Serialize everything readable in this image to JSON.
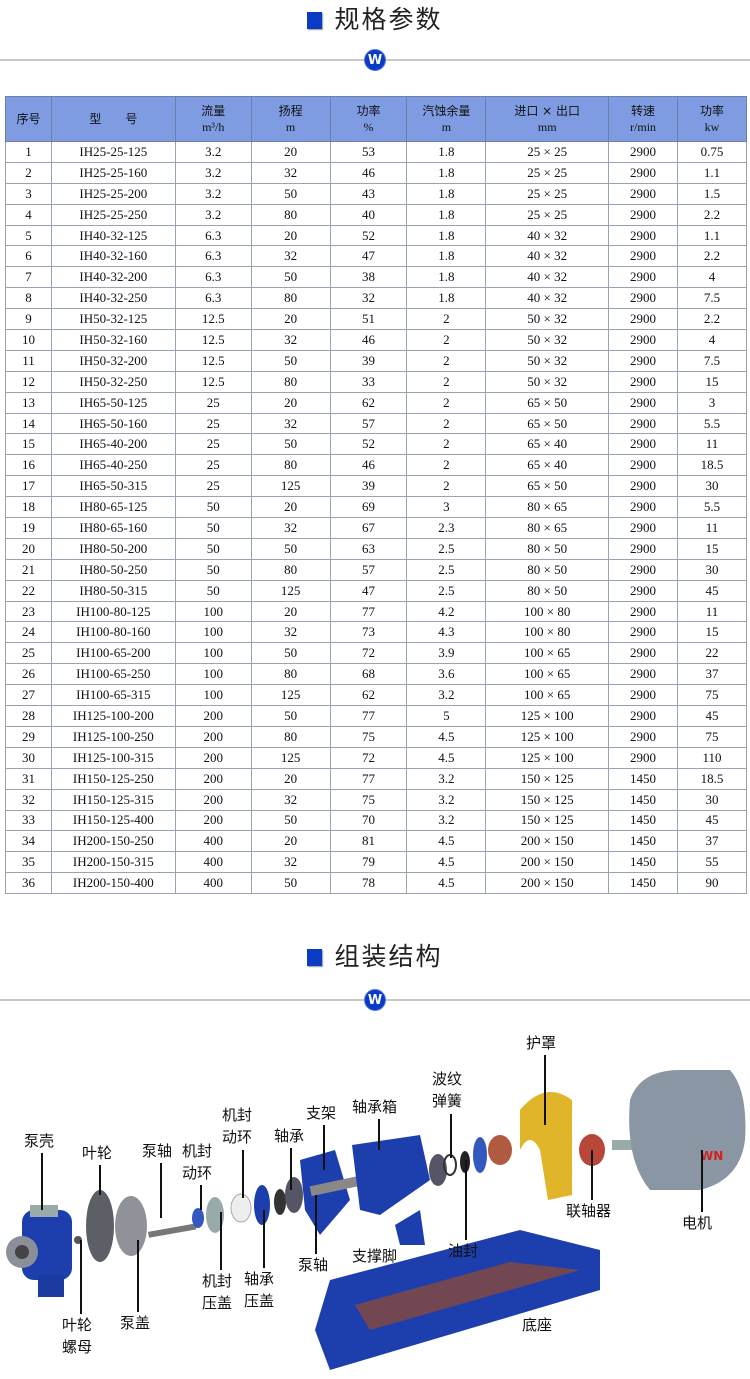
{
  "section1": {
    "title": "规格参数",
    "badge": "W"
  },
  "section2": {
    "title": "组装结构",
    "badge": "W"
  },
  "table": {
    "headers": [
      {
        "top": "序号",
        "bottom": ""
      },
      {
        "top": "型　　号",
        "bottom": ""
      },
      {
        "top": "流量",
        "bottom": "m³/h"
      },
      {
        "top": "扬程",
        "bottom": "m"
      },
      {
        "top": "功率",
        "bottom": "%"
      },
      {
        "top": "汽蚀余量",
        "bottom": "m"
      },
      {
        "top": "进口 × 出口",
        "bottom": "mm"
      },
      {
        "top": "转速",
        "bottom": "r/min"
      },
      {
        "top": "功率",
        "bottom": "kw"
      }
    ],
    "rows": [
      [
        "1",
        "IH25-25-125",
        "3.2",
        "20",
        "53",
        "1.8",
        "25 × 25",
        "2900",
        "0.75"
      ],
      [
        "2",
        "IH25-25-160",
        "3.2",
        "32",
        "46",
        "1.8",
        "25 × 25",
        "2900",
        "1.1"
      ],
      [
        "3",
        "IH25-25-200",
        "3.2",
        "50",
        "43",
        "1.8",
        "25 × 25",
        "2900",
        "1.5"
      ],
      [
        "4",
        "IH25-25-250",
        "3.2",
        "80",
        "40",
        "1.8",
        "25 × 25",
        "2900",
        "2.2"
      ],
      [
        "5",
        "IH40-32-125",
        "6.3",
        "20",
        "52",
        "1.8",
        "40 × 32",
        "2900",
        "1.1"
      ],
      [
        "6",
        "IH40-32-160",
        "6.3",
        "32",
        "47",
        "1.8",
        "40 × 32",
        "2900",
        "2.2"
      ],
      [
        "7",
        "IH40-32-200",
        "6.3",
        "50",
        "38",
        "1.8",
        "40 × 32",
        "2900",
        "4"
      ],
      [
        "8",
        "IH40-32-250",
        "6.3",
        "80",
        "32",
        "1.8",
        "40 × 32",
        "2900",
        "7.5"
      ],
      [
        "9",
        "IH50-32-125",
        "12.5",
        "20",
        "51",
        "2",
        "50 × 32",
        "2900",
        "2.2"
      ],
      [
        "10",
        "IH50-32-160",
        "12.5",
        "32",
        "46",
        "2",
        "50 × 32",
        "2900",
        "4"
      ],
      [
        "11",
        "IH50-32-200",
        "12.5",
        "50",
        "39",
        "2",
        "50 × 32",
        "2900",
        "7.5"
      ],
      [
        "12",
        "IH50-32-250",
        "12.5",
        "80",
        "33",
        "2",
        "50 × 32",
        "2900",
        "15"
      ],
      [
        "13",
        "IH65-50-125",
        "25",
        "20",
        "62",
        "2",
        "65 × 50",
        "2900",
        "3"
      ],
      [
        "14",
        "IH65-50-160",
        "25",
        "32",
        "57",
        "2",
        "65 × 50",
        "2900",
        "5.5"
      ],
      [
        "15",
        "IH65-40-200",
        "25",
        "50",
        "52",
        "2",
        "65 × 40",
        "2900",
        "11"
      ],
      [
        "16",
        "IH65-40-250",
        "25",
        "80",
        "46",
        "2",
        "65 × 40",
        "2900",
        "18.5"
      ],
      [
        "17",
        "IH65-50-315",
        "25",
        "125",
        "39",
        "2",
        "65 × 50",
        "2900",
        "30"
      ],
      [
        "18",
        "IH80-65-125",
        "50",
        "20",
        "69",
        "3",
        "80 × 65",
        "2900",
        "5.5"
      ],
      [
        "19",
        "IH80-65-160",
        "50",
        "32",
        "67",
        "2.3",
        "80 × 65",
        "2900",
        "11"
      ],
      [
        "20",
        "IH80-50-200",
        "50",
        "50",
        "63",
        "2.5",
        "80 × 50",
        "2900",
        "15"
      ],
      [
        "21",
        "IH80-50-250",
        "50",
        "80",
        "57",
        "2.5",
        "80 × 50",
        "2900",
        "30"
      ],
      [
        "22",
        "IH80-50-315",
        "50",
        "125",
        "47",
        "2.5",
        "80 × 50",
        "2900",
        "45"
      ],
      [
        "23",
        "IH100-80-125",
        "100",
        "20",
        "77",
        "4.2",
        "100 × 80",
        "2900",
        "11"
      ],
      [
        "24",
        "IH100-80-160",
        "100",
        "32",
        "73",
        "4.3",
        "100 × 80",
        "2900",
        "15"
      ],
      [
        "25",
        "IH100-65-200",
        "100",
        "50",
        "72",
        "3.9",
        "100 × 65",
        "2900",
        "22"
      ],
      [
        "26",
        "IH100-65-250",
        "100",
        "80",
        "68",
        "3.6",
        "100 × 65",
        "2900",
        "37"
      ],
      [
        "27",
        "IH100-65-315",
        "100",
        "125",
        "62",
        "3.2",
        "100 × 65",
        "2900",
        "75"
      ],
      [
        "28",
        "IH125-100-200",
        "200",
        "50",
        "77",
        "5",
        "125 × 100",
        "2900",
        "45"
      ],
      [
        "29",
        "IH125-100-250",
        "200",
        "80",
        "75",
        "4.5",
        "125 × 100",
        "2900",
        "75"
      ],
      [
        "30",
        "IH125-100-315",
        "200",
        "125",
        "72",
        "4.5",
        "125 × 100",
        "2900",
        "110"
      ],
      [
        "31",
        "IH150-125-250",
        "200",
        "20",
        "77",
        "3.2",
        "150 × 125",
        "1450",
        "18.5"
      ],
      [
        "32",
        "IH150-125-315",
        "200",
        "32",
        "75",
        "3.2",
        "150 × 125",
        "1450",
        "30"
      ],
      [
        "33",
        "IH150-125-400",
        "200",
        "50",
        "70",
        "3.2",
        "150 × 125",
        "1450",
        "45"
      ],
      [
        "34",
        "IH200-150-250",
        "400",
        "20",
        "81",
        "4.5",
        "200 × 150",
        "1450",
        "37"
      ],
      [
        "35",
        "IH200-150-315",
        "400",
        "32",
        "79",
        "4.5",
        "200 × 150",
        "1450",
        "55"
      ],
      [
        "36",
        "IH200-150-400",
        "400",
        "50",
        "78",
        "4.5",
        "200 × 150",
        "1450",
        "90"
      ]
    ]
  },
  "diagram": {
    "labels": {
      "pump_casing": "泵壳",
      "impeller": "叶轮",
      "pump_shaft": "泵轴",
      "seal_ring_1": "机封\n动环",
      "seal_ring_2": "机封\n动环",
      "bearing": "轴承",
      "bracket": "支架",
      "bearing_box": "轴承箱",
      "bellows_spring": "波纹\n弹簧",
      "guard": "护罩",
      "oil_seal": "油封",
      "coupling": "联轴器",
      "motor": "电机",
      "pump_shaft_2": "泵轴",
      "support_foot": "支撑脚",
      "seal_gland": "机封\n压盖",
      "bearing_cover": "轴承\n压盖",
      "impeller_nut": "叶轮\n螺母",
      "pump_cover": "泵盖",
      "base": "底座"
    },
    "motor_brand": "WN",
    "colors": {
      "accent": "#0a3bc4",
      "header_bg": "#7f9ce3",
      "guard": "#e0b52a",
      "base_inner": "#8a4a3a"
    }
  }
}
